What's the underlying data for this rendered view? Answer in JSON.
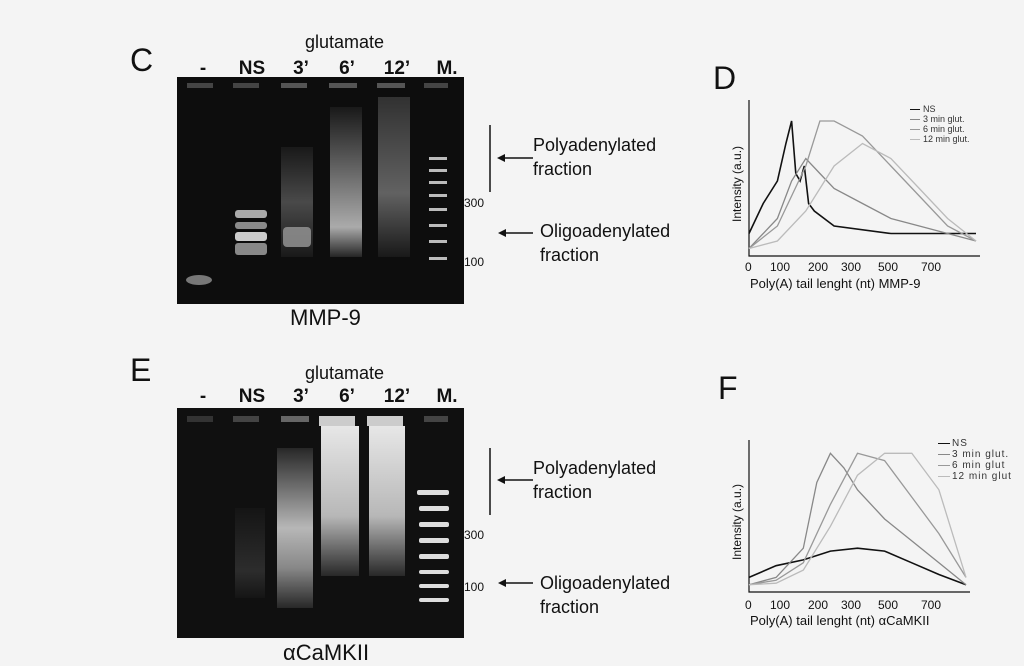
{
  "panels": {
    "C": {
      "letter": "C",
      "treatment_label": "glutamate",
      "lanes": [
        "-",
        "NS",
        "3’",
        "6’",
        "12’",
        "M."
      ],
      "gene_label": "MMP-9",
      "size_markers": [
        "300",
        "100"
      ],
      "fractions": {
        "poly_line1": "Polyadenylated",
        "poly_line2": "fraction",
        "oligo_line1": "Oligoadenylated",
        "oligo_line2": "fraction"
      }
    },
    "E": {
      "letter": "E",
      "treatment_label": "glutamate",
      "lanes": [
        "-",
        "NS",
        "3’",
        "6’",
        "12’",
        "M."
      ],
      "gene_label": "αCaMKII",
      "size_markers": [
        "300",
        "100"
      ],
      "fractions": {
        "poly_line1": "Polyadenylated",
        "poly_line2": "fraction",
        "oligo_line1": "Oligoadenylated",
        "oligo_line2": "fraction"
      }
    },
    "D": {
      "letter": "D",
      "ylabel": "Intensity (a.u.)",
      "xlabel": "Poly(A) tail lenght (nt) MMP-9",
      "xticks": [
        "0",
        "100",
        "200",
        "300",
        "500",
        "700"
      ],
      "legend": [
        "NS",
        "3 min glut.",
        "6 min glut.",
        "12 min glut."
      ]
    },
    "F": {
      "letter": "F",
      "ylabel": "Intensity (a.u.)",
      "xlabel": "Poly(A) tail lenght (nt) αCaMKII",
      "xticks": [
        "0",
        "100",
        "200",
        "300",
        "500",
        "700"
      ],
      "legend": [
        "NS",
        "3 min glut.",
        "6 min glut",
        "12 min glut"
      ]
    }
  },
  "colors": {
    "gel_bg": "#0b0b0b",
    "ns": "#111111",
    "g3": "#888888",
    "g6": "#999999",
    "g12": "#bbbbbb"
  },
  "chart_data": [
    {
      "type": "line",
      "xlabel": "Poly(A) tail lenght (nt) MMP-9",
      "ylabel": "Intensity (a.u.)",
      "x_ticks": [
        "0",
        "100",
        "200",
        "300",
        "500",
        "700"
      ],
      "series": [
        {
          "name": "NS",
          "x": [
            0,
            50,
            100,
            130,
            150,
            165,
            180,
            195,
            210,
            230,
            300,
            500,
            700,
            800
          ],
          "y": [
            0.15,
            0.35,
            0.5,
            0.75,
            0.9,
            0.55,
            0.5,
            0.6,
            0.35,
            0.3,
            0.2,
            0.15,
            0.15,
            0.15
          ]
        },
        {
          "name": "3 min glut.",
          "x": [
            0,
            100,
            150,
            200,
            250,
            300,
            400,
            500,
            600,
            700,
            800
          ],
          "y": [
            0.05,
            0.25,
            0.5,
            0.65,
            0.55,
            0.45,
            0.35,
            0.25,
            0.2,
            0.15,
            0.1
          ]
        },
        {
          "name": "6 min glut.",
          "x": [
            0,
            100,
            200,
            250,
            300,
            400,
            500,
            600,
            700,
            800
          ],
          "y": [
            0.05,
            0.2,
            0.6,
            0.9,
            0.9,
            0.8,
            0.6,
            0.4,
            0.2,
            0.1
          ]
        },
        {
          "name": "12 min glut.",
          "x": [
            0,
            100,
            200,
            300,
            400,
            500,
            600,
            700,
            800
          ],
          "y": [
            0.05,
            0.1,
            0.3,
            0.6,
            0.75,
            0.65,
            0.45,
            0.25,
            0.1
          ]
        }
      ]
    },
    {
      "type": "line",
      "xlabel": "Poly(A) tail lenght (nt) αCaMKII",
      "ylabel": "Intensity (a.u.)",
      "x_ticks": [
        "0",
        "100",
        "200",
        "300",
        "500",
        "700"
      ],
      "series": [
        {
          "name": "NS",
          "x": [
            0,
            100,
            200,
            300,
            400,
            500,
            600,
            700,
            800
          ],
          "y": [
            0.1,
            0.18,
            0.22,
            0.28,
            0.3,
            0.28,
            0.2,
            0.12,
            0.05
          ]
        },
        {
          "name": "3 min glut.",
          "x": [
            0,
            100,
            200,
            250,
            300,
            350,
            400,
            500,
            600,
            700,
            800
          ],
          "y": [
            0.05,
            0.1,
            0.3,
            0.75,
            0.95,
            0.85,
            0.7,
            0.5,
            0.35,
            0.2,
            0.05
          ]
        },
        {
          "name": "6 min glut",
          "x": [
            0,
            100,
            200,
            300,
            400,
            500,
            600,
            700,
            800
          ],
          "y": [
            0.05,
            0.08,
            0.2,
            0.6,
            0.95,
            0.9,
            0.65,
            0.4,
            0.1
          ]
        },
        {
          "name": "12 min glut",
          "x": [
            0,
            100,
            200,
            300,
            400,
            500,
            600,
            700,
            800
          ],
          "y": [
            0.05,
            0.06,
            0.15,
            0.45,
            0.8,
            0.95,
            0.95,
            0.7,
            0.1
          ]
        }
      ]
    }
  ]
}
